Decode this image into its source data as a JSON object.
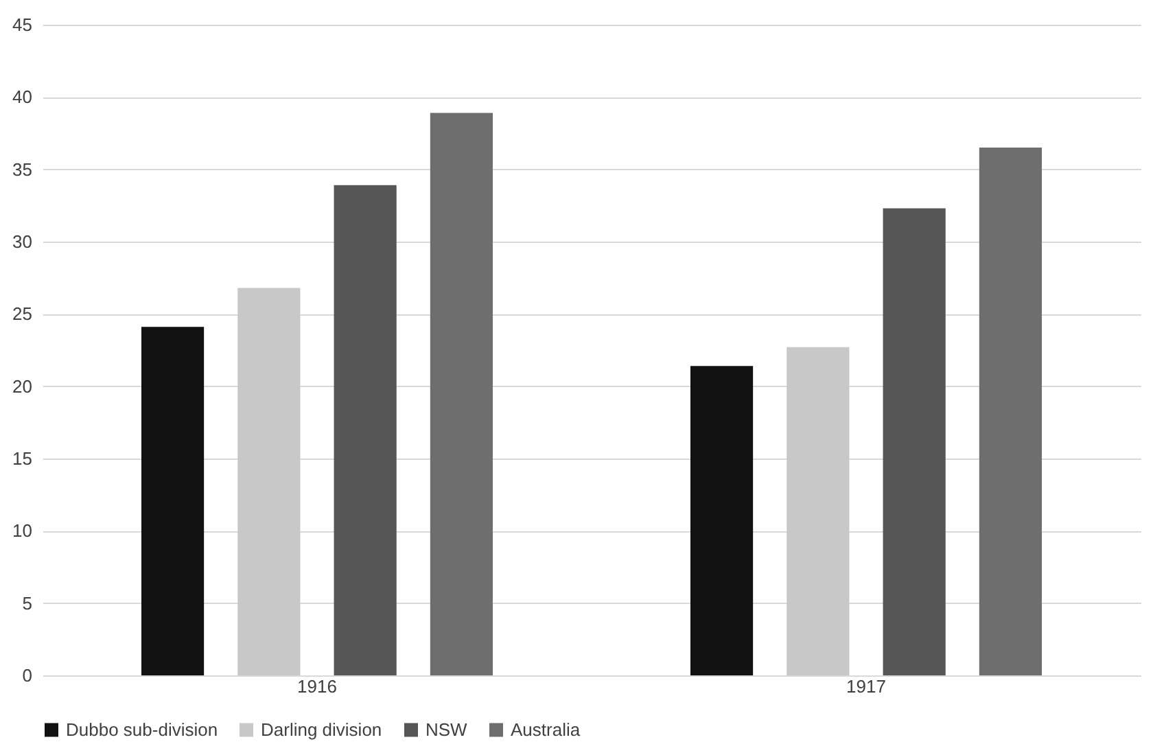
{
  "chart_data": {
    "type": "bar",
    "categories": [
      "1916",
      "1917"
    ],
    "series": [
      {
        "name": "Dubbo sub-division",
        "color": "#111111",
        "values": [
          24.1,
          21.4
        ]
      },
      {
        "name": "Darling division",
        "color": "#c8c8c8",
        "values": [
          26.8,
          22.7
        ]
      },
      {
        "name": "NSW",
        "color": "#555555",
        "values": [
          33.9,
          32.3
        ]
      },
      {
        "name": "Australia",
        "color": "#6e6e6e",
        "values": [
          38.9,
          36.5
        ]
      }
    ],
    "ylim": [
      0,
      45
    ],
    "yticks": [
      0,
      5,
      10,
      15,
      20,
      25,
      30,
      35,
      40,
      45
    ],
    "grid": "y",
    "legend": "bottom"
  }
}
